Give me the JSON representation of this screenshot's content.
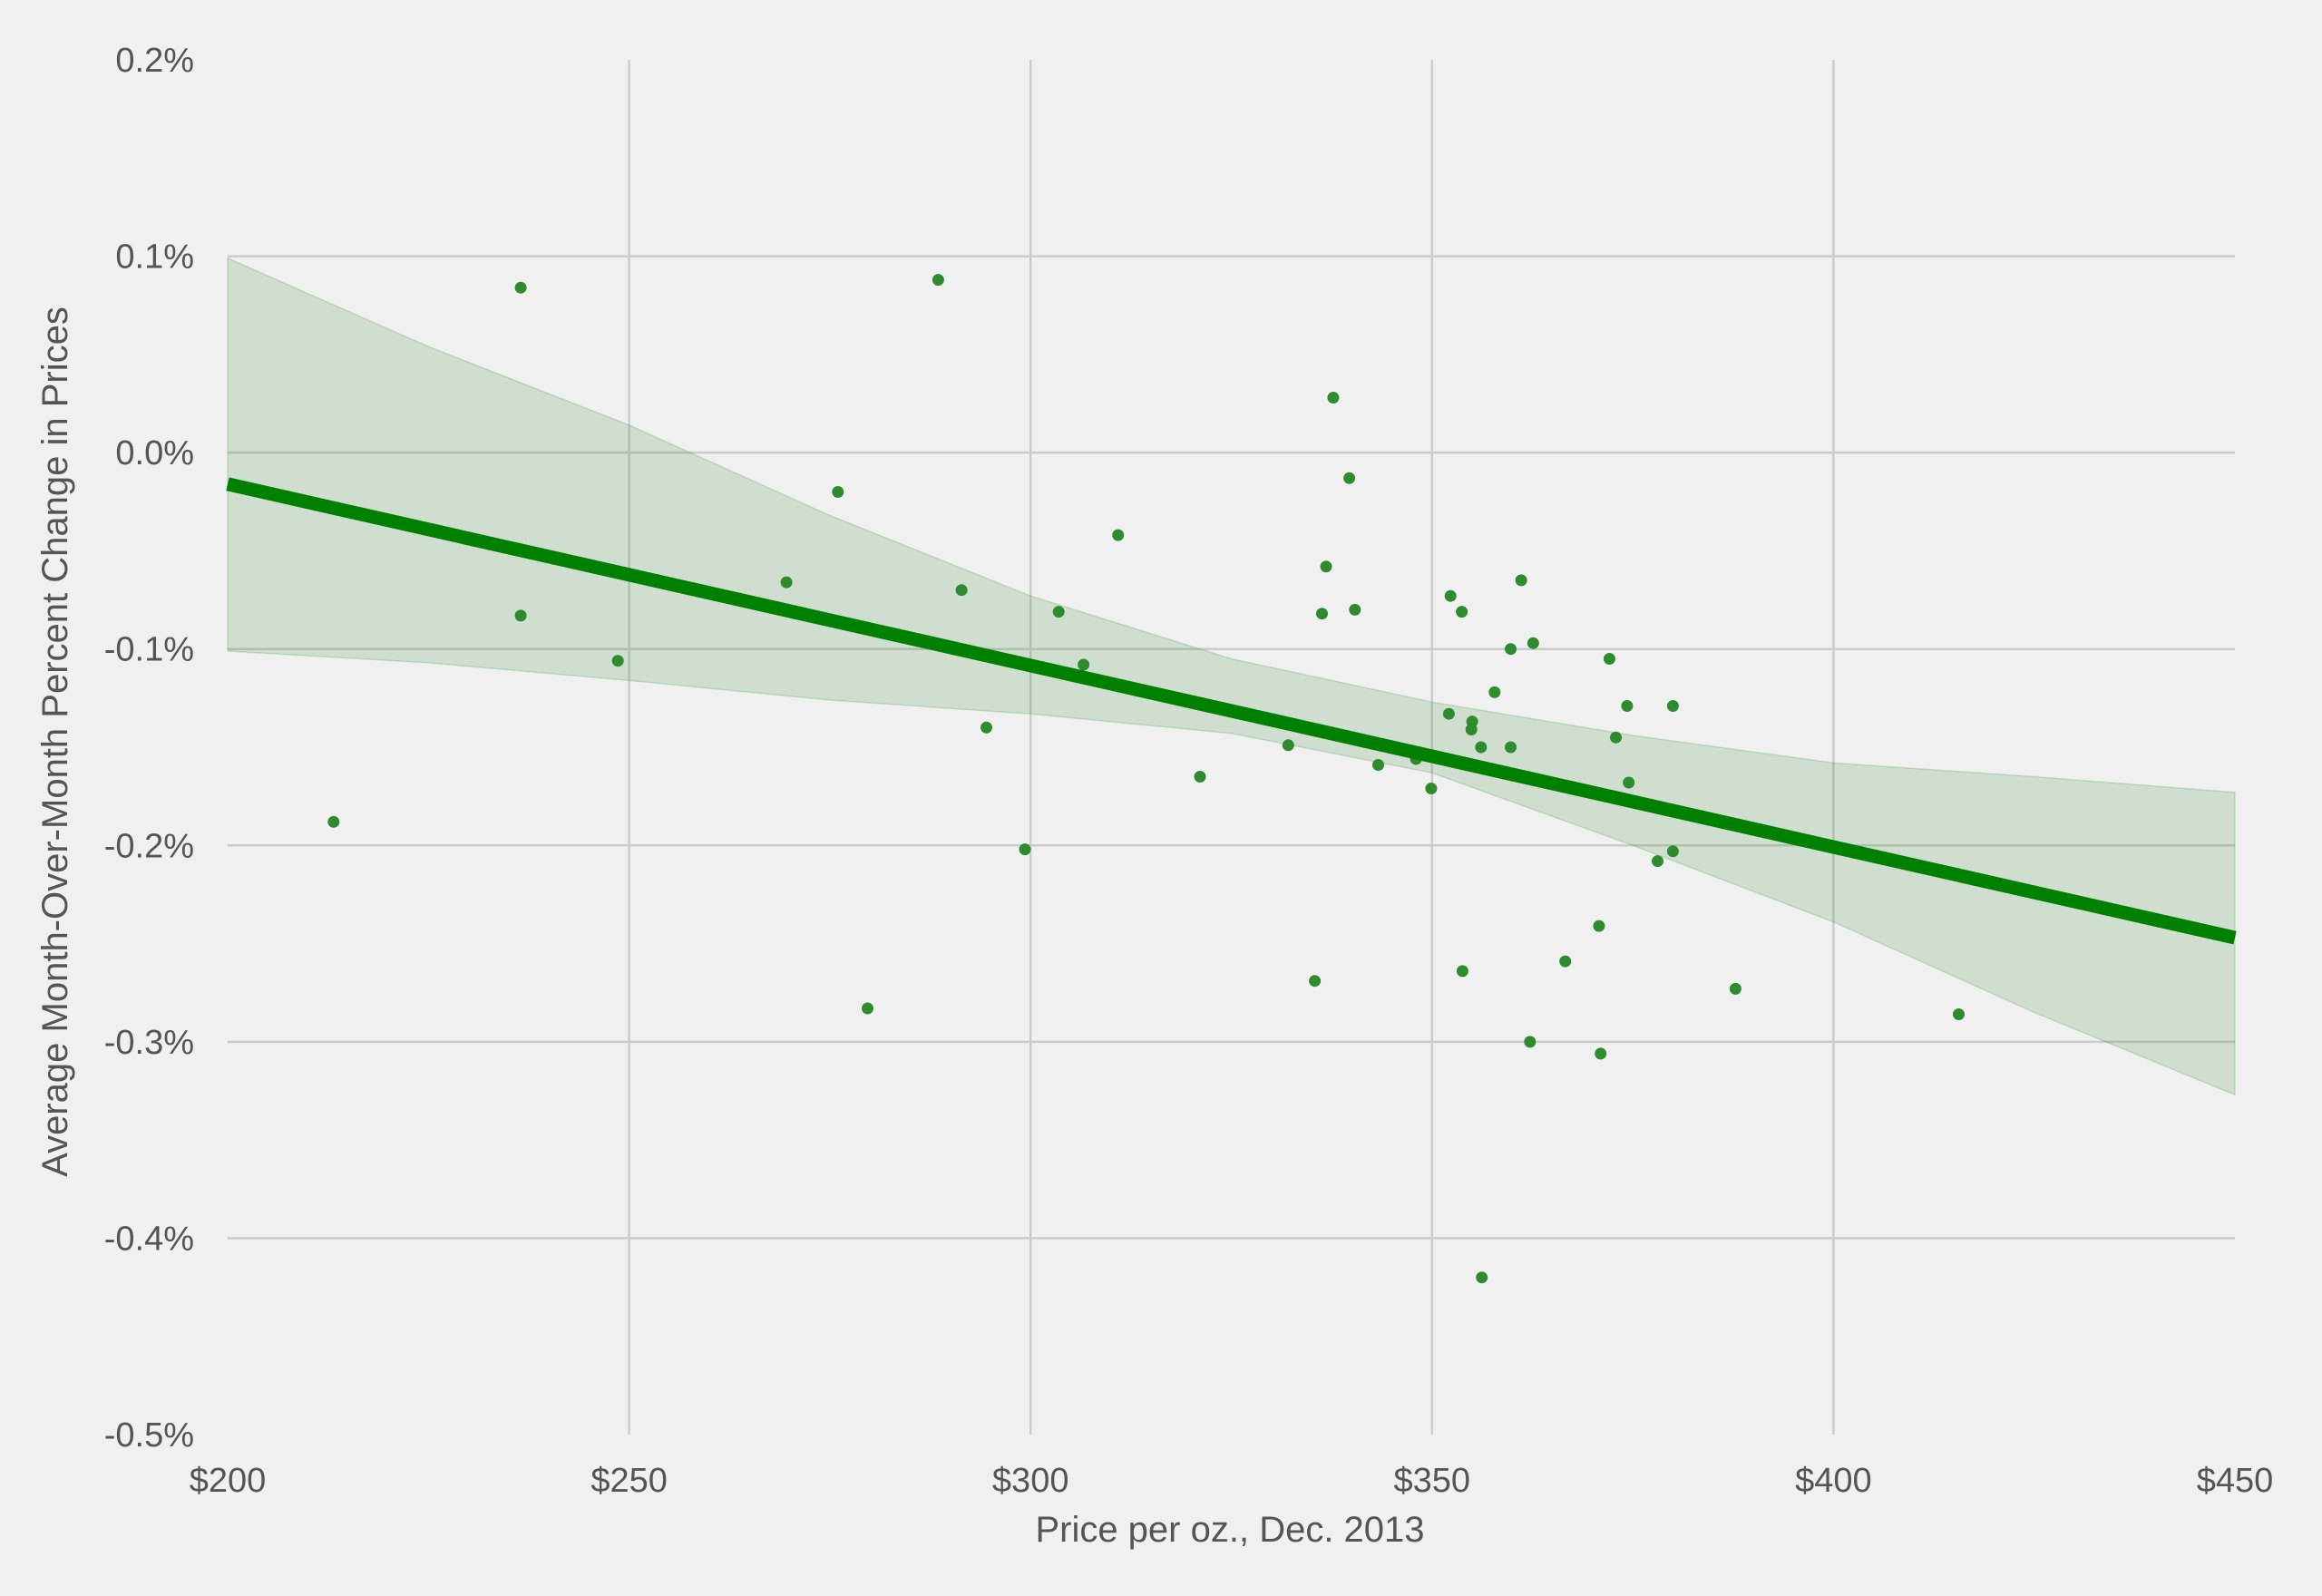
{
  "chart_data": {
    "type": "scatter",
    "title": "",
    "xlabel": "Price per oz., Dec. 2013",
    "ylabel": "Average Month-Over-Month Percent Change in Prices",
    "xlim": [
      200,
      450
    ],
    "ylim": [
      -0.5,
      0.2
    ],
    "x_ticks": [
      {
        "value": 200,
        "label": "$200"
      },
      {
        "value": 250,
        "label": "$250"
      },
      {
        "value": 300,
        "label": "$300"
      },
      {
        "value": 350,
        "label": "$350"
      },
      {
        "value": 400,
        "label": "$400"
      },
      {
        "value": 450,
        "label": "$450"
      }
    ],
    "y_ticks": [
      {
        "value": 0.2,
        "label": "0.2%"
      },
      {
        "value": 0.1,
        "label": "0.1%"
      },
      {
        "value": 0.0,
        "label": "0.0%"
      },
      {
        "value": -0.1,
        "label": "-0.1%"
      },
      {
        "value": -0.2,
        "label": "-0.2%"
      },
      {
        "value": -0.3,
        "label": "-0.3%"
      },
      {
        "value": -0.4,
        "label": "-0.4%"
      },
      {
        "value": -0.5,
        "label": "-0.5%"
      }
    ],
    "grid": true,
    "points": [
      {
        "x": 213.2,
        "y": -0.188
      },
      {
        "x": 236.5,
        "y": 0.084
      },
      {
        "x": 236.5,
        "y": -0.083
      },
      {
        "x": 248.6,
        "y": -0.106
      },
      {
        "x": 269.6,
        "y": -0.066
      },
      {
        "x": 276.0,
        "y": -0.02
      },
      {
        "x": 279.7,
        "y": -0.283
      },
      {
        "x": 288.5,
        "y": 0.088
      },
      {
        "x": 291.4,
        "y": -0.07
      },
      {
        "x": 294.5,
        "y": -0.14
      },
      {
        "x": 299.3,
        "y": -0.202
      },
      {
        "x": 303.5,
        "y": -0.081
      },
      {
        "x": 306.6,
        "y": -0.108
      },
      {
        "x": 310.9,
        "y": -0.042
      },
      {
        "x": 321.1,
        "y": -0.165
      },
      {
        "x": 332.1,
        "y": -0.149
      },
      {
        "x": 335.4,
        "y": -0.269
      },
      {
        "x": 336.3,
        "y": -0.082
      },
      {
        "x": 336.8,
        "y": -0.058
      },
      {
        "x": 337.7,
        "y": 0.028
      },
      {
        "x": 339.7,
        "y": -0.013
      },
      {
        "x": 340.4,
        "y": -0.08
      },
      {
        "x": 343.3,
        "y": -0.159
      },
      {
        "x": 348.0,
        "y": -0.156
      },
      {
        "x": 349.9,
        "y": -0.171
      },
      {
        "x": 352.1,
        "y": -0.133
      },
      {
        "x": 352.3,
        "y": -0.073
      },
      {
        "x": 353.7,
        "y": -0.081
      },
      {
        "x": 353.8,
        "y": -0.264
      },
      {
        "x": 354.9,
        "y": -0.141
      },
      {
        "x": 355.0,
        "y": -0.137
      },
      {
        "x": 356.1,
        "y": -0.15
      },
      {
        "x": 356.2,
        "y": -0.42
      },
      {
        "x": 357.8,
        "y": -0.122
      },
      {
        "x": 359.8,
        "y": -0.1
      },
      {
        "x": 359.8,
        "y": -0.15
      },
      {
        "x": 361.1,
        "y": -0.065
      },
      {
        "x": 362.2,
        "y": -0.3
      },
      {
        "x": 362.6,
        "y": -0.097
      },
      {
        "x": 366.6,
        "y": -0.259
      },
      {
        "x": 370.8,
        "y": -0.241
      },
      {
        "x": 371.0,
        "y": -0.306
      },
      {
        "x": 372.1,
        "y": -0.105
      },
      {
        "x": 372.9,
        "y": -0.145
      },
      {
        "x": 374.3,
        "y": -0.129
      },
      {
        "x": 374.5,
        "y": -0.168
      },
      {
        "x": 378.1,
        "y": -0.208
      },
      {
        "x": 380.0,
        "y": -0.129
      },
      {
        "x": 380.0,
        "y": -0.203
      },
      {
        "x": 387.8,
        "y": -0.273
      },
      {
        "x": 415.6,
        "y": -0.286
      }
    ],
    "regression": {
      "x": [
        200,
        450
      ],
      "y": [
        -0.016,
        -0.247
      ]
    },
    "confidence_band": {
      "x": [
        200,
        225,
        250,
        275,
        300,
        325,
        350,
        375,
        400,
        425,
        450
      ],
      "upper": [
        0.099,
        0.054,
        0.014,
        -0.032,
        -0.073,
        -0.105,
        -0.127,
        -0.144,
        -0.158,
        -0.165,
        -0.173
      ],
      "lower": [
        -0.101,
        -0.107,
        -0.116,
        -0.126,
        -0.133,
        -0.143,
        -0.163,
        -0.2,
        -0.239,
        -0.285,
        -0.327
      ]
    },
    "colors": {
      "background": "#f0f0f0",
      "points": "#2e8b2e",
      "line": "#008000",
      "band": "#2e8b2e",
      "grid": "#cbcbcb",
      "text": "#555555"
    }
  }
}
